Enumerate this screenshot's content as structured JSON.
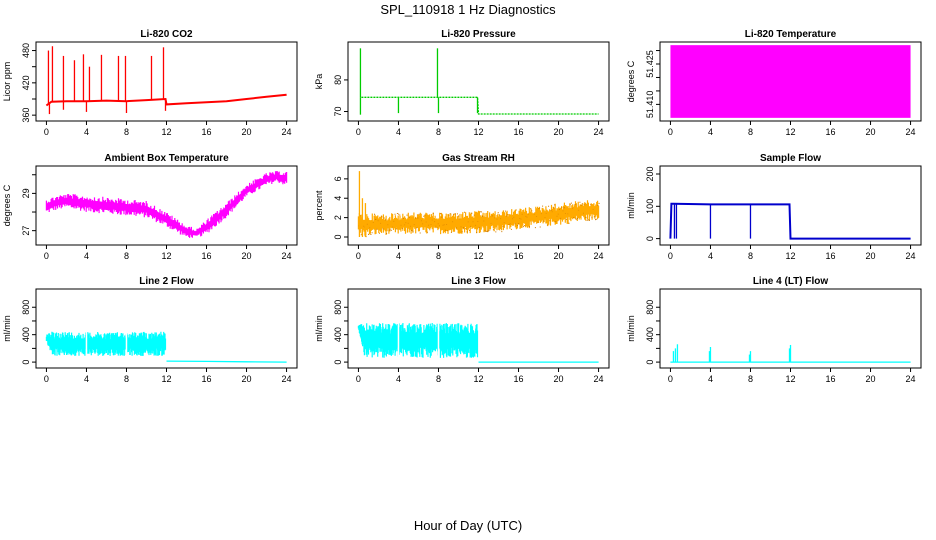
{
  "figure": {
    "title": "SPL_110918  1 Hz Diagnostics",
    "xlabel": "Hour of Day (UTC)"
  },
  "chart_data": [
    {
      "type": "line",
      "title": "Li-820 CO2",
      "ylabel": "Licor ppm",
      "color": "#ff0000",
      "xlim": [
        0,
        24
      ],
      "ylim": [
        355,
        490
      ],
      "xticks": [
        "0",
        "4",
        "8",
        "12",
        "16",
        "20",
        "24"
      ],
      "yticks": [
        360,
        420,
        480
      ],
      "yticks_minor": [
        390,
        450
      ],
      "series": [
        {
          "x": [
            0,
            0.5,
            2,
            4,
            6,
            8,
            10,
            11.9,
            12,
            14,
            16,
            18,
            20,
            22,
            24
          ],
          "y": [
            378,
            385,
            386,
            386,
            387,
            386,
            388,
            390,
            380,
            382,
            384,
            386,
            390,
            394,
            398
          ]
        }
      ],
      "spikes": [
        {
          "x": 0.2,
          "y": 480
        },
        {
          "x": 0.6,
          "y": 488
        },
        {
          "x": 1.7,
          "y": 470
        },
        {
          "x": 2.8,
          "y": 462
        },
        {
          "x": 3.7,
          "y": 473
        },
        {
          "x": 4.3,
          "y": 450
        },
        {
          "x": 5.5,
          "y": 472
        },
        {
          "x": 7.2,
          "y": 470
        },
        {
          "x": 7.9,
          "y": 470
        },
        {
          "x": 10.5,
          "y": 470
        },
        {
          "x": 11.7,
          "y": 486
        }
      ],
      "dips": [
        {
          "x": 0.3,
          "y": 362
        },
        {
          "x": 1.7,
          "y": 370
        },
        {
          "x": 4.0,
          "y": 366
        },
        {
          "x": 8.0,
          "y": 364
        },
        {
          "x": 11.9,
          "y": 368
        }
      ]
    },
    {
      "type": "line",
      "title": "Li-820 Pressure",
      "ylabel": "kPa",
      "color": "#00cc00",
      "xlim": [
        0,
        24
      ],
      "ylim": [
        68,
        91
      ],
      "xticks": [
        "0",
        "4",
        "8",
        "12",
        "16",
        "20",
        "24"
      ],
      "yticks": [
        70,
        80
      ],
      "series": [
        {
          "x": [
            0.3,
            4,
            8,
            11.9,
            12,
            16,
            20,
            24
          ],
          "y": [
            74.5,
            74.5,
            74.5,
            74.5,
            69.2,
            69.2,
            69.2,
            69.2
          ]
        }
      ],
      "spikes": [
        {
          "x": 0.2,
          "y": 90
        },
        {
          "x": 7.9,
          "y": 90
        }
      ],
      "dips": [
        {
          "x": 0.2,
          "y": 69
        },
        {
          "x": 4.0,
          "y": 69.5
        },
        {
          "x": 8.0,
          "y": 69.5
        },
        {
          "x": 11.9,
          "y": 69.5
        }
      ]
    },
    {
      "type": "area",
      "title": "Li-820 Temperature",
      "ylabel": "degrees C",
      "color": "#ff00ff",
      "xlim": [
        0,
        24
      ],
      "ylim": [
        51.405,
        51.432
      ],
      "xticks": [
        "0",
        "4",
        "8",
        "12",
        "16",
        "20",
        "24"
      ],
      "yticks": [
        "51.410",
        "51.425"
      ],
      "yticks_minor": [
        "51.415",
        "51.420",
        "51.430"
      ],
      "band": {
        "x": [
          0,
          24
        ],
        "ymin": 51.405,
        "ymax": 51.432
      }
    },
    {
      "type": "area",
      "title": "Ambient Box Temperature",
      "ylabel": "degrees C",
      "color": "#ff00ff",
      "xlim": [
        0,
        24
      ],
      "ylim": [
        26.4,
        30.3
      ],
      "xticks": [
        "0",
        "4",
        "8",
        "12",
        "16",
        "20",
        "24"
      ],
      "yticks": [
        27,
        29
      ],
      "yticks_minor": [
        28,
        30
      ],
      "band_upper": {
        "x": [
          0,
          1,
          2,
          4,
          6,
          8,
          10,
          12,
          14,
          15,
          16,
          18,
          20,
          22,
          23,
          24
        ],
        "y": [
          28.7,
          28.9,
          29.0,
          28.9,
          28.8,
          28.7,
          28.6,
          28.0,
          27.3,
          27.1,
          27.6,
          28.5,
          29.5,
          30.1,
          30.2,
          30.2
        ]
      },
      "band_lower": {
        "x": [
          0,
          1,
          2,
          4,
          6,
          8,
          10,
          12,
          14,
          15,
          16,
          18,
          20,
          22,
          23,
          24
        ],
        "y": [
          27.9,
          28.1,
          28.2,
          28.0,
          27.9,
          27.8,
          27.7,
          27.2,
          26.6,
          26.6,
          26.8,
          27.7,
          28.8,
          29.4,
          29.6,
          29.4
        ]
      }
    },
    {
      "type": "area",
      "title": "Gas Stream RH",
      "ylabel": "percent",
      "color": "#ffaa00",
      "color_secondary": "#cc7700",
      "xlim": [
        0,
        24
      ],
      "ylim": [
        -0.5,
        7
      ],
      "xticks": [
        "0",
        "4",
        "8",
        "12",
        "16",
        "20",
        "24"
      ],
      "yticks": [
        0,
        2,
        4,
        6
      ],
      "band_upper": {
        "x": [
          0,
          0.5,
          2,
          4,
          6,
          8,
          10,
          12,
          14,
          16,
          18,
          20,
          22,
          24
        ],
        "y": [
          2.5,
          2.5,
          2.4,
          2.5,
          2.6,
          2.5,
          2.6,
          2.7,
          2.7,
          3.0,
          3.2,
          3.5,
          3.8,
          3.8
        ]
      },
      "band_lower": {
        "x": [
          0,
          0.5,
          2,
          4,
          6,
          8,
          10,
          12,
          14,
          16,
          18,
          20,
          22,
          24
        ],
        "y": [
          0.3,
          0.0,
          0.2,
          0.2,
          0.3,
          0.3,
          0.3,
          0.4,
          0.5,
          0.8,
          1.0,
          1.2,
          1.5,
          1.8
        ]
      },
      "spikes": [
        {
          "x": 0.1,
          "y": 6.8
        },
        {
          "x": 0.4,
          "y": 4.0
        },
        {
          "x": 0.7,
          "y": 3.5
        }
      ]
    },
    {
      "type": "line",
      "title": "Sample Flow",
      "ylabel": "ml/min",
      "color": "#0000cc",
      "xlim": [
        0,
        24
      ],
      "ylim": [
        -10,
        215
      ],
      "xticks": [
        "0",
        "4",
        "8",
        "12",
        "16",
        "20",
        "24"
      ],
      "yticks": [
        0,
        100,
        200
      ],
      "series": [
        {
          "x": [
            0,
            0.1,
            0.3,
            4,
            8,
            11.9,
            12,
            16,
            20,
            24
          ],
          "y": [
            0,
            108,
            108,
            106,
            106,
            106,
            0,
            0,
            0,
            0
          ]
        }
      ],
      "dips": [
        {
          "x": 0.4,
          "y": 0
        },
        {
          "x": 0.6,
          "y": 0
        },
        {
          "x": 4.0,
          "y": 0
        },
        {
          "x": 8.0,
          "y": 0
        }
      ]
    },
    {
      "type": "area",
      "title": "Line 2 Flow",
      "ylabel": "ml/min",
      "color": "#00ffff",
      "xlim": [
        0,
        24
      ],
      "ylim": [
        -40,
        1020
      ],
      "xticks": [
        "0",
        "4",
        "8",
        "12",
        "16",
        "20",
        "24"
      ],
      "yticks": [
        0,
        400,
        800
      ],
      "yticks_minor": [
        200,
        600
      ],
      "band_upper": {
        "x": [
          0,
          0.6,
          4,
          8,
          11.9
        ],
        "y": [
          400,
          450,
          440,
          440,
          450
        ]
      },
      "band_lower": {
        "x": [
          0,
          0.6,
          4,
          8,
          11.9
        ],
        "y": [
          300,
          90,
          90,
          90,
          90
        ]
      },
      "series": [
        {
          "x": [
            12,
            16,
            20,
            24
          ],
          "y": [
            15,
            10,
            5,
            0
          ]
        }
      ]
    },
    {
      "type": "area",
      "title": "Line 3 Flow",
      "ylabel": "ml/min",
      "color": "#00ffff",
      "xlim": [
        0,
        24
      ],
      "ylim": [
        -40,
        1020
      ],
      "xticks": [
        "0",
        "4",
        "8",
        "12",
        "16",
        "20",
        "24"
      ],
      "yticks": [
        0,
        400,
        800
      ],
      "yticks_minor": [
        200,
        600
      ],
      "band_upper": {
        "x": [
          0,
          0.6,
          4,
          8,
          11.9
        ],
        "y": [
          540,
          570,
          570,
          570,
          570
        ]
      },
      "band_lower": {
        "x": [
          0,
          0.6,
          4,
          8,
          11.9
        ],
        "y": [
          480,
          60,
          60,
          60,
          60
        ]
      },
      "series": [
        {
          "x": [
            12,
            16,
            20,
            24
          ],
          "y": [
            0,
            0,
            0,
            0
          ]
        }
      ]
    },
    {
      "type": "line",
      "title": "Line 4 (LT) Flow",
      "ylabel": "ml/min",
      "color": "#00ffff",
      "xlim": [
        0,
        24
      ],
      "ylim": [
        -40,
        1020
      ],
      "xticks": [
        "0",
        "4",
        "8",
        "12",
        "16",
        "20",
        "24"
      ],
      "yticks": [
        0,
        400,
        800
      ],
      "yticks_minor": [
        200,
        600
      ],
      "series": [
        {
          "x": [
            0,
            24
          ],
          "y": [
            0,
            0
          ]
        }
      ],
      "spikes": [
        {
          "x": 0.3,
          "y": 160
        },
        {
          "x": 0.5,
          "y": 200
        },
        {
          "x": 0.7,
          "y": 260
        },
        {
          "x": 4.0,
          "y": 220
        },
        {
          "x": 3.9,
          "y": 160
        },
        {
          "x": 8.0,
          "y": 160
        },
        {
          "x": 7.9,
          "y": 110
        },
        {
          "x": 12.0,
          "y": 250
        },
        {
          "x": 11.9,
          "y": 200
        }
      ]
    }
  ]
}
